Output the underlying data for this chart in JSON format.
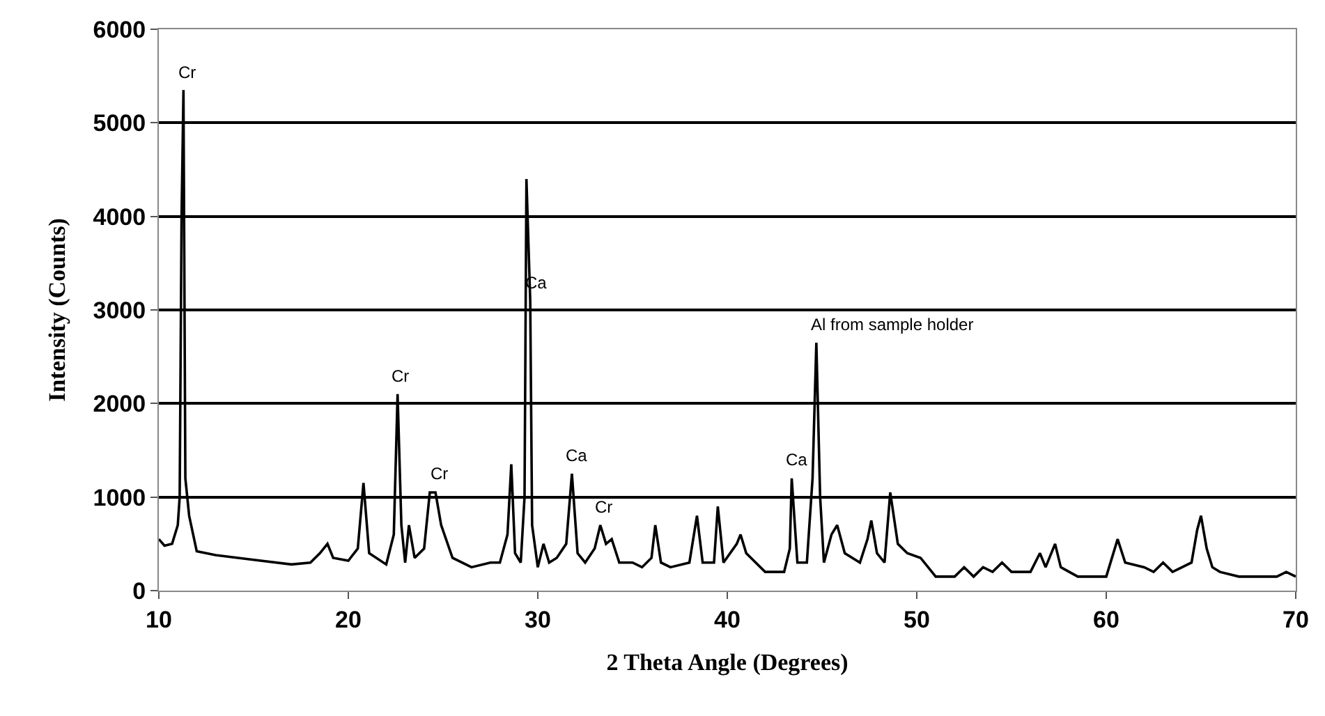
{
  "chart_data": {
    "type": "line",
    "xlabel": "2 Theta Angle (Degrees)",
    "ylabel": "Intensity (Counts)",
    "x": [
      10,
      10.3,
      10.7,
      11.0,
      11.1,
      11.2,
      11.3,
      11.4,
      11.6,
      12,
      13,
      15,
      17,
      18,
      18.5,
      18.9,
      19.2,
      20,
      20.5,
      20.8,
      21.1,
      22,
      22.4,
      22.6,
      22.8,
      23.0,
      23.2,
      23.5,
      24,
      24.3,
      24.6,
      24.9,
      25.5,
      26.5,
      27.5,
      28,
      28.4,
      28.6,
      28.8,
      29.1,
      29.3,
      29.4,
      29.6,
      29.7,
      30,
      30.3,
      30.6,
      31,
      31.5,
      31.8,
      32.1,
      32.5,
      33,
      33.3,
      33.6,
      33.9,
      34.3,
      35,
      35.5,
      36,
      36.2,
      36.5,
      37,
      38,
      38.4,
      38.7,
      39.3,
      39.5,
      39.8,
      40.5,
      40.7,
      41,
      41.5,
      42,
      43,
      43.3,
      43.4,
      43.7,
      44.2,
      44.5,
      44.7,
      44.9,
      45.1,
      45.5,
      45.8,
      46.2,
      47,
      47.4,
      47.6,
      47.9,
      48.3,
      48.6,
      49,
      49.5,
      50.2,
      51,
      52,
      52.5,
      53,
      53.5,
      54,
      54.5,
      55,
      56,
      56.5,
      56.8,
      57.3,
      57.6,
      58.5,
      60,
      60.6,
      61,
      62,
      62.5,
      63,
      63.5,
      64.5,
      64.8,
      65,
      65.3,
      65.6,
      66,
      67,
      68,
      69,
      69.5,
      70
    ],
    "series": [
      {
        "color": "#000000",
        "values": [
          550,
          480,
          500,
          700,
          1000,
          4000,
          5350,
          1200,
          800,
          420,
          380,
          330,
          280,
          300,
          400,
          500,
          350,
          320,
          450,
          1150,
          400,
          280,
          600,
          2100,
          700,
          300,
          700,
          350,
          450,
          1050,
          1050,
          700,
          350,
          250,
          300,
          300,
          600,
          1350,
          400,
          300,
          1000,
          4400,
          3100,
          700,
          250,
          500,
          300,
          350,
          500,
          1250,
          400,
          300,
          450,
          700,
          500,
          550,
          300,
          300,
          250,
          350,
          700,
          300,
          250,
          300,
          800,
          300,
          300,
          900,
          300,
          500,
          600,
          400,
          300,
          200,
          200,
          450,
          1200,
          300,
          300,
          1200,
          2650,
          1000,
          300,
          600,
          700,
          400,
          300,
          550,
          750,
          400,
          300,
          1050,
          500,
          400,
          350,
          150,
          150,
          250,
          150,
          250,
          200,
          300,
          200,
          200,
          400,
          250,
          500,
          250,
          150,
          150,
          550,
          300,
          250,
          200,
          300,
          200,
          300,
          650,
          800,
          450,
          250,
          200,
          150,
          150,
          150,
          200,
          150
        ]
      }
    ],
    "xlim": [
      10,
      70
    ],
    "xticks": [
      10,
      20,
      30,
      40,
      50,
      60,
      70
    ],
    "ylim": [
      0,
      6000
    ],
    "yticks": [
      0,
      1000,
      2000,
      3000,
      4000,
      5000,
      6000
    ],
    "grid": "y",
    "marker": "none",
    "line_style": "solid",
    "annotations": [
      {
        "text": "Cr",
        "x": 11.3,
        "y": 5350
      },
      {
        "text": "Cr",
        "x": 22.6,
        "y": 2100
      },
      {
        "text": "Cr",
        "x": 24.6,
        "y": 1050
      },
      {
        "text": "Ca",
        "x": 29.6,
        "y": 3100
      },
      {
        "text": "Ca",
        "x": 31.8,
        "y": 1250
      },
      {
        "text": "Cr",
        "x": 33.3,
        "y": 700
      },
      {
        "text": "Ca",
        "x": 43.4,
        "y": 1200
      },
      {
        "text": "Al from sample holder",
        "x": 44.7,
        "y": 2650
      }
    ]
  }
}
